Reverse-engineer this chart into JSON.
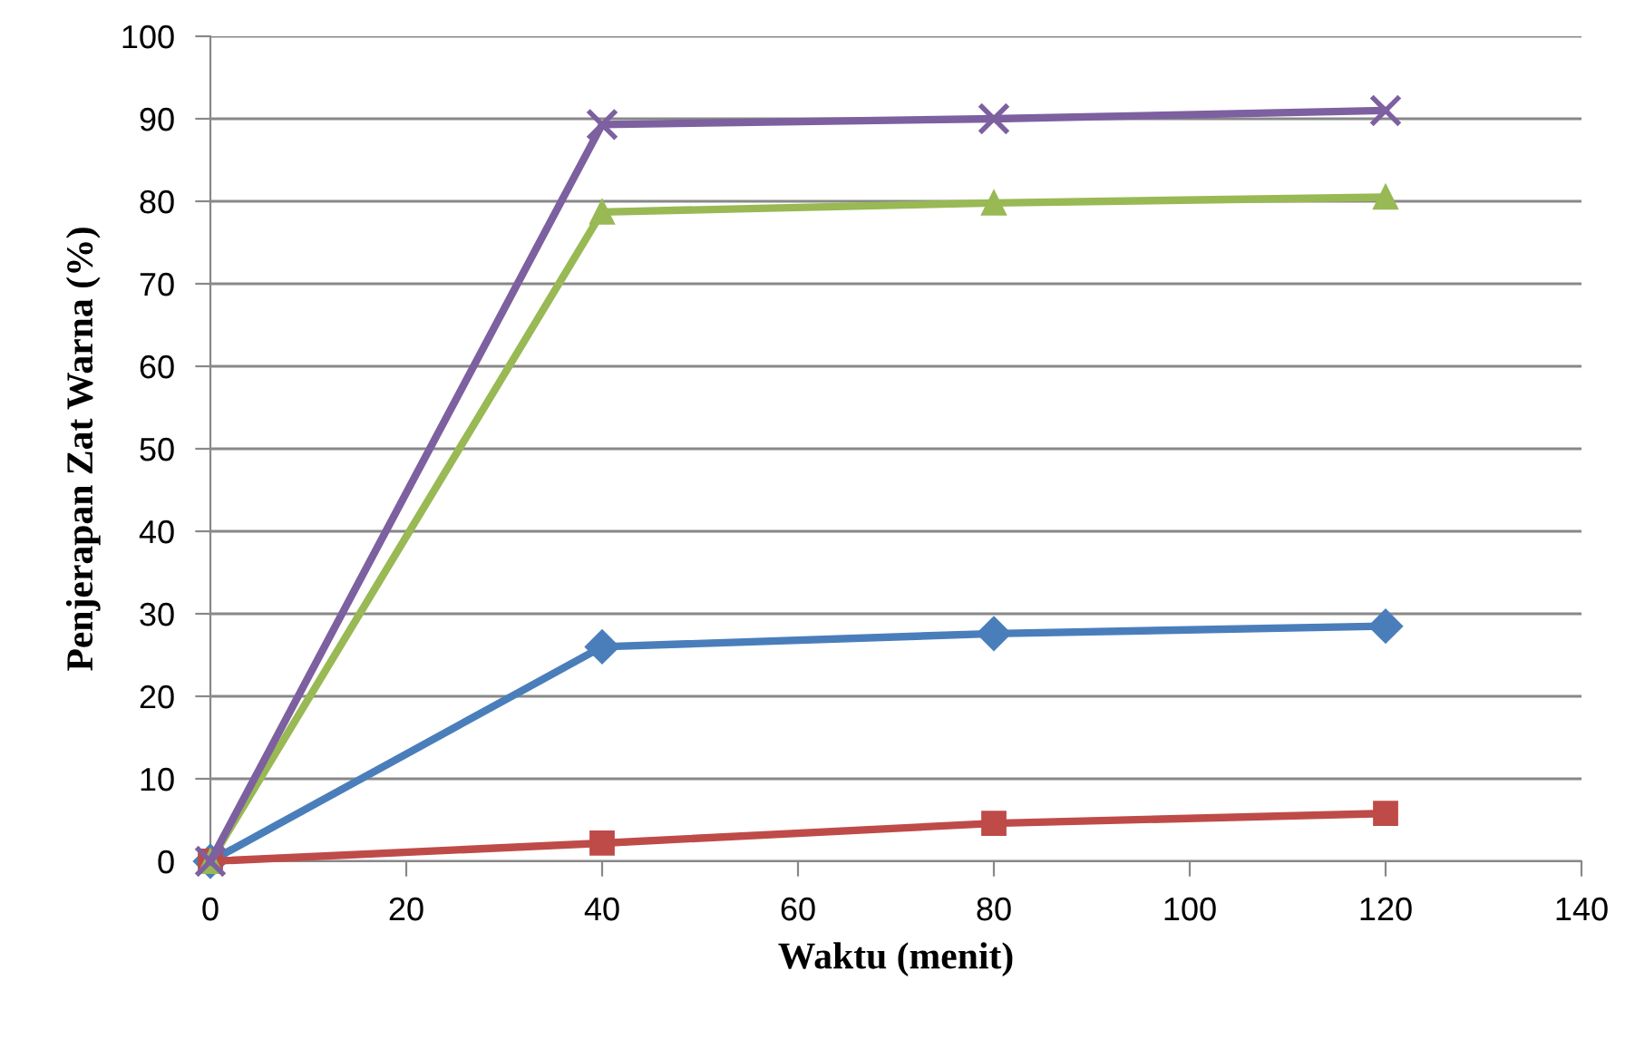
{
  "chart_data": {
    "type": "line",
    "xlabel": "Waktu (menit)",
    "ylabel": "Penjerapan Zat Warna (%)",
    "x": [
      0,
      40,
      80,
      120
    ],
    "series": [
      {
        "color": "#4a7ebb",
        "marker": "diamond",
        "values": [
          0,
          26,
          27.6,
          28.5
        ]
      },
      {
        "color": "#be4b48",
        "marker": "square",
        "values": [
          0,
          2.2,
          4.6,
          5.8
        ]
      },
      {
        "color": "#98b954",
        "marker": "triangle",
        "values": [
          0,
          78.7,
          79.8,
          80.5
        ]
      },
      {
        "color": "#7d60a0",
        "marker": "cross",
        "values": [
          0,
          89.3,
          90,
          91
        ]
      }
    ],
    "xlim": [
      0,
      140
    ],
    "xticks": [
      0,
      20,
      40,
      60,
      80,
      100,
      120,
      140
    ],
    "ylim": [
      0,
      100
    ],
    "yticks": [
      0,
      10,
      20,
      30,
      40,
      50,
      60,
      70,
      80,
      90,
      100
    ],
    "grid": "y",
    "legend": false,
    "line_style": "solid"
  }
}
